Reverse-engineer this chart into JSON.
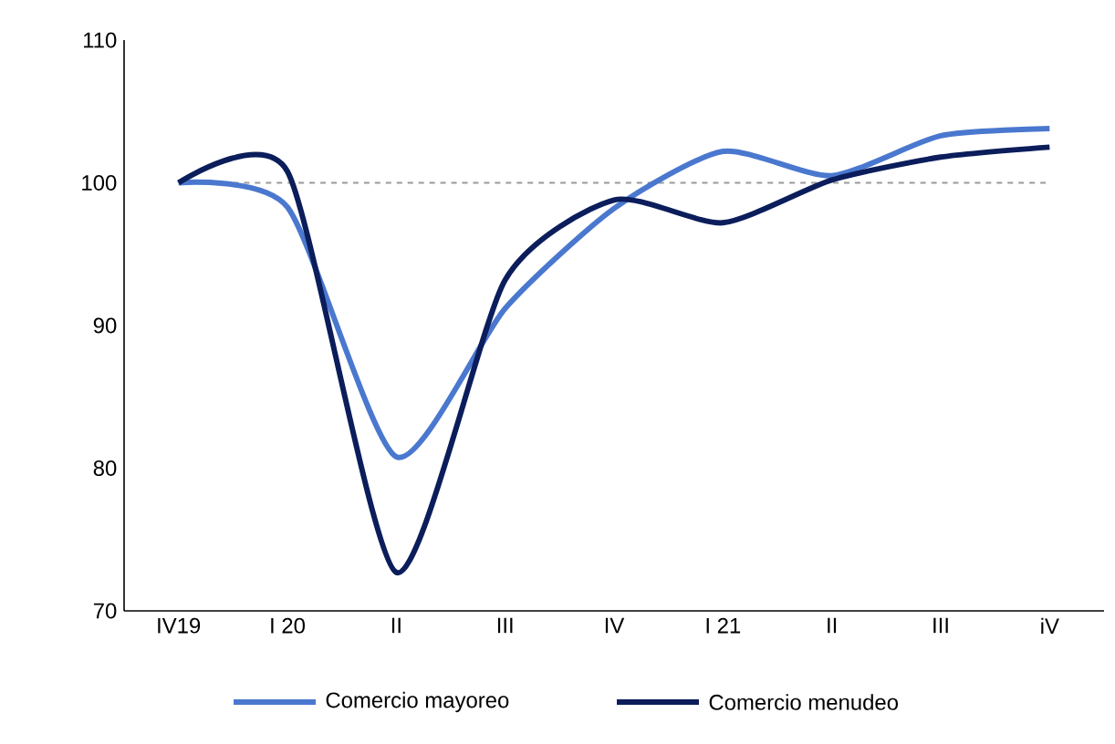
{
  "chart_data": {
    "type": "line",
    "categories": [
      "IV19",
      "I 20",
      "II",
      "III",
      "IV",
      "I 21",
      "II",
      "III",
      "iV"
    ],
    "series": [
      {
        "name": "Comercio mayoreo",
        "color": "#4a78cf",
        "values": [
          100,
          98.3,
          80.8,
          91.2,
          98.2,
          102.2,
          100.5,
          103.3,
          103.8
        ]
      },
      {
        "name": "Comercio menudeo",
        "color": "#0b1d5b",
        "values": [
          100,
          100.8,
          72.7,
          93.2,
          98.8,
          97.2,
          100.2,
          101.8,
          102.5
        ]
      }
    ],
    "ylim": [
      70,
      110
    ],
    "yticks": [
      70,
      80,
      90,
      100,
      110
    ],
    "ref_lines": [
      {
        "axis": "y",
        "value": 100,
        "color": "#999999",
        "line_style": "dashed"
      }
    ],
    "legend": "bottom",
    "grid": false,
    "marker": "none",
    "line_style": "solid"
  }
}
